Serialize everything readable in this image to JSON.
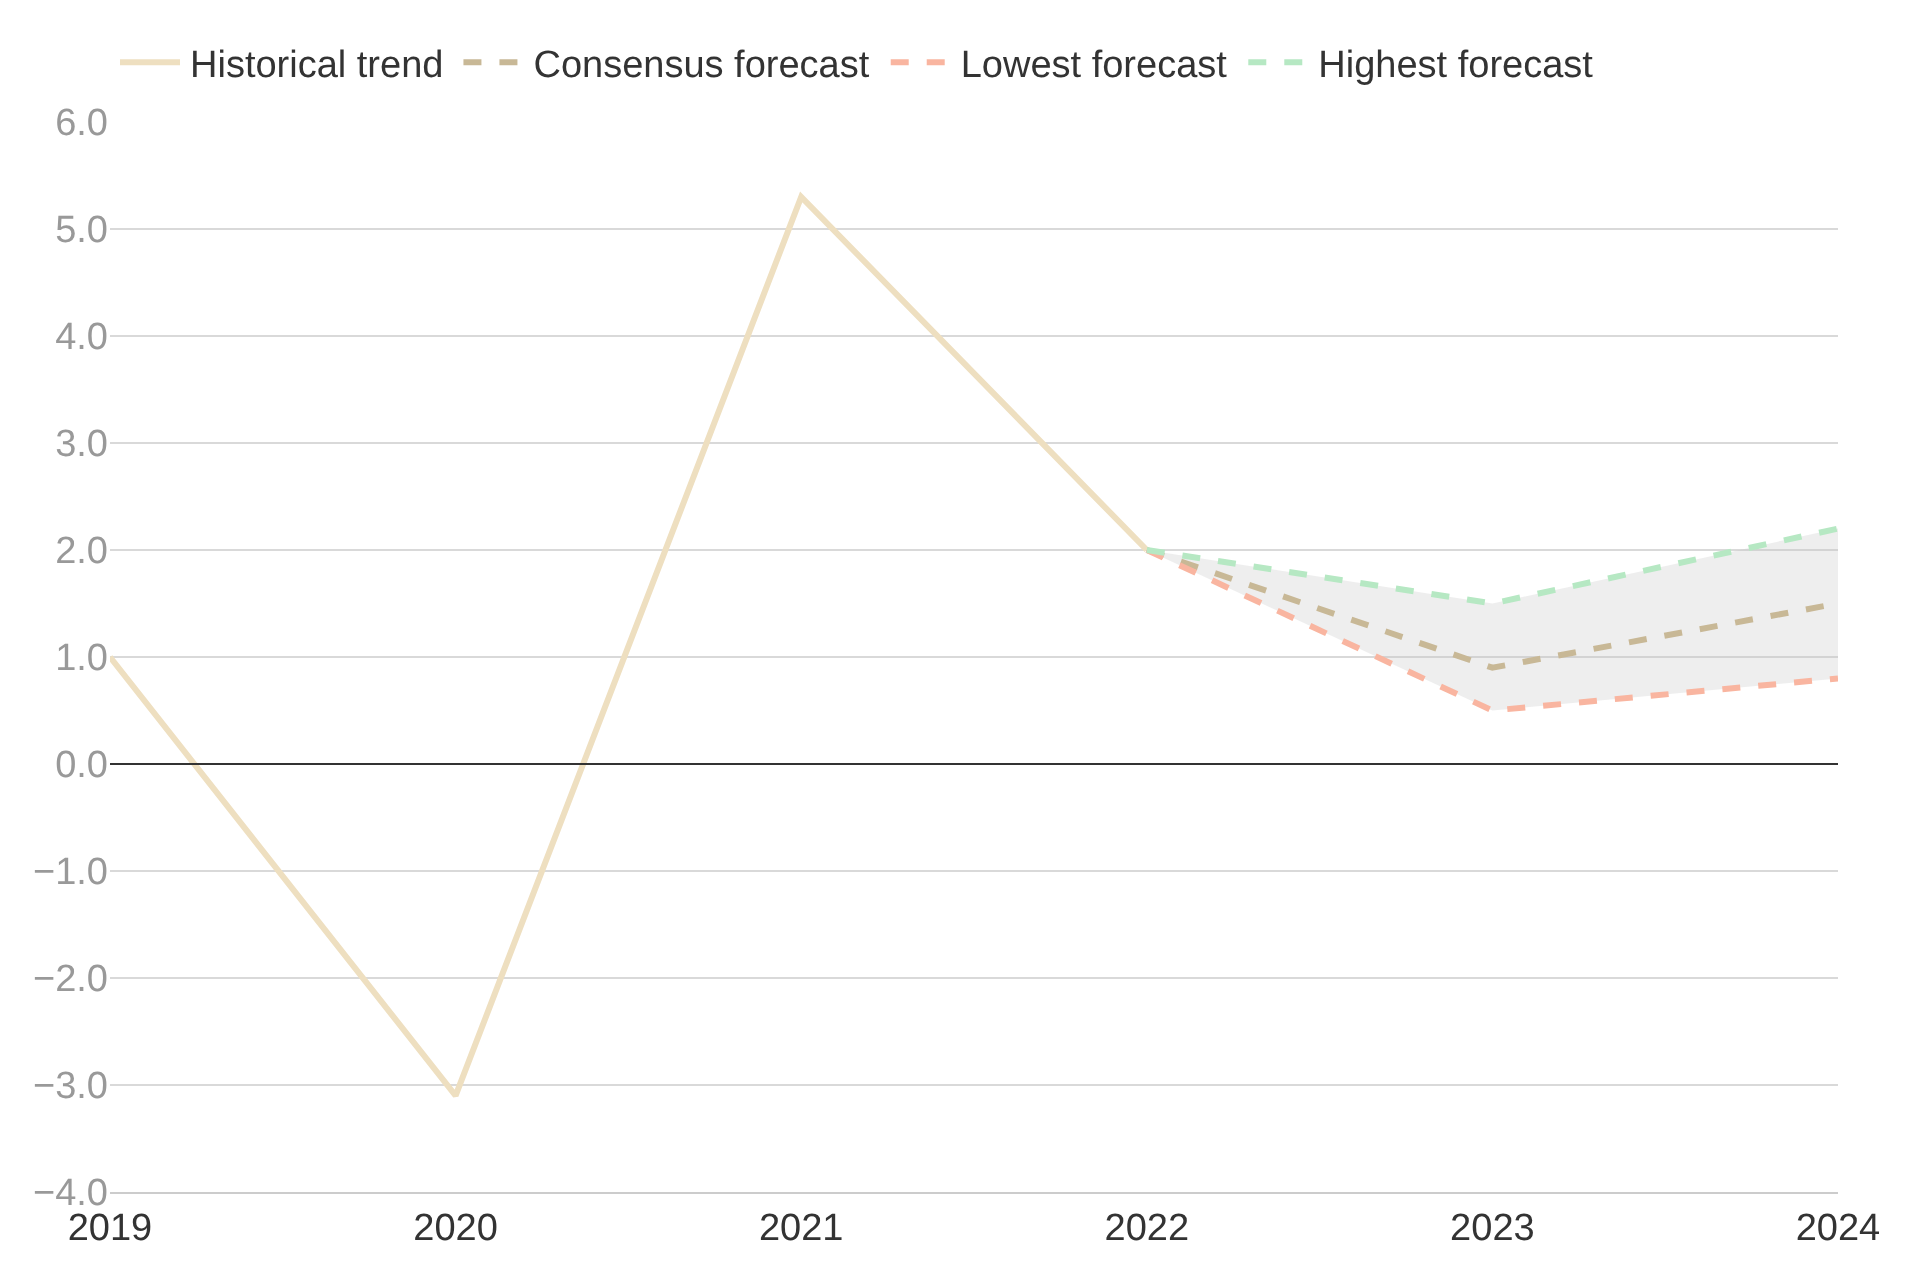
{
  "chart_data": {
    "type": "line",
    "series": [
      {
        "name": "Historical trend",
        "color": "#eedfc0",
        "line_style": "solid",
        "x": [
          2019,
          2020,
          2021,
          2022
        ],
        "values": [
          1.0,
          -3.1,
          5.3,
          2.0
        ]
      },
      {
        "name": "Consensus forecast",
        "color": "#c8b896",
        "line_style": "dashed",
        "x": [
          2022,
          2023,
          2024
        ],
        "values": [
          2.0,
          0.9,
          1.5
        ],
        "lower": [
          2.0,
          0.5,
          0.8
        ],
        "upper": [
          2.0,
          1.5,
          2.2
        ]
      },
      {
        "name": "Lowest forecast",
        "color": "#f9b5a0",
        "line_style": "dashed",
        "x": [
          2022,
          2023,
          2024
        ],
        "values": [
          2.0,
          0.5,
          0.8
        ]
      },
      {
        "name": "Highest forecast",
        "color": "#b6e8c3",
        "line_style": "dashed",
        "x": [
          2022,
          2023,
          2024
        ],
        "values": [
          2.0,
          1.5,
          2.2
        ]
      }
    ],
    "xlim": [
      2019,
      2024
    ],
    "xticks": [
      2019,
      2020,
      2021,
      2022,
      2023,
      2024
    ],
    "ylim": [
      -4,
      6
    ],
    "yticks": [
      {
        "value": -4,
        "label": "−4.0"
      },
      {
        "value": -3,
        "label": "−3.0"
      },
      {
        "value": -2,
        "label": "−2.0"
      },
      {
        "value": -1,
        "label": "−1.0"
      },
      {
        "value": 0,
        "label": "0.0"
      },
      {
        "value": 1,
        "label": "1.0"
      },
      {
        "value": 2,
        "label": "2.0"
      },
      {
        "value": 3,
        "label": "3.0"
      },
      {
        "value": 4,
        "label": "4.0"
      },
      {
        "value": 5,
        "label": "5.0"
      },
      {
        "value": 6,
        "label": "6.0"
      }
    ],
    "ref_lines": [
      {
        "axis": "y",
        "value": 0,
        "color": "#333333"
      }
    ],
    "grid": "y",
    "legend": "top left",
    "marker": "none"
  }
}
